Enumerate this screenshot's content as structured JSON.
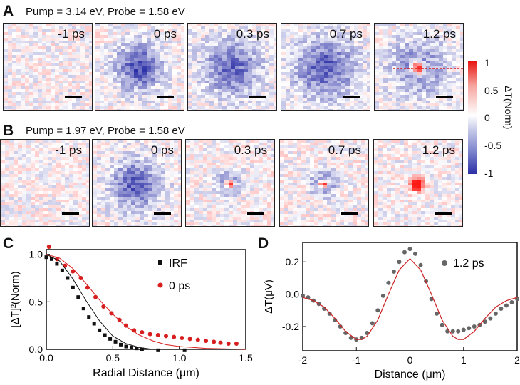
{
  "panelA": {
    "letter": "A",
    "condition": "Pump = 3.14 eV, Probe = 1.58 eV",
    "frames": [
      "-1 ps",
      "0 ps",
      "0.3 ps",
      "0.7 ps",
      "1.2 ps"
    ]
  },
  "panelB": {
    "letter": "B",
    "condition": "Pump = 1.97 eV, Probe = 1.58 eV",
    "frames": [
      "-1 ps",
      "0 ps",
      "0.3 ps",
      "0.7 ps",
      "1.2 ps"
    ]
  },
  "colorbar": {
    "label": "ΔT(Norm)",
    "ticks": [
      "1",
      "0.5",
      "0",
      "-0.5",
      "-1"
    ],
    "colors": {
      "max": "#e8140f",
      "mid": "#ffffff",
      "min": "#2b2fa6"
    }
  },
  "panelC": {
    "letter": "C"
  },
  "panelD": {
    "letter": "D"
  },
  "chart_data": [
    {
      "type": "scatter",
      "xlabel": "Radial Distance (μm)",
      "ylabel": "[ΔT]²(Norm)",
      "xlim": [
        0,
        1.5
      ],
      "ylim": [
        0,
        1.05
      ],
      "xticks": [
        "0.0",
        "0.5",
        "1.0",
        "1.5"
      ],
      "yticks": [
        "0.0",
        "0.5",
        "1.0"
      ],
      "legend_position": "top-right",
      "series": [
        {
          "name": "IRF",
          "marker": "square",
          "color": "#111111",
          "x": [
            0.0,
            0.04,
            0.08,
            0.12,
            0.16,
            0.2,
            0.24,
            0.28,
            0.32,
            0.36,
            0.4,
            0.44,
            0.48,
            0.52,
            0.56,
            0.6,
            0.64,
            0.68,
            0.72,
            0.84,
            1.04
          ],
          "y": [
            0.97,
            0.95,
            0.9,
            0.83,
            0.75,
            0.65,
            0.55,
            0.43,
            0.34,
            0.27,
            0.2,
            0.15,
            0.11,
            0.08,
            0.05,
            0.03,
            0.02,
            0.01,
            0.0,
            -0.01,
            -0.01
          ]
        },
        {
          "name": "0 ps",
          "marker": "circle",
          "color": "#d81e1e",
          "x": [
            0.02,
            0.08,
            0.14,
            0.2,
            0.26,
            0.31,
            0.37,
            0.43,
            0.49,
            0.55,
            0.6,
            0.66,
            0.72,
            0.78,
            0.84,
            0.9,
            0.96,
            1.02,
            1.08,
            1.14,
            1.2,
            1.26,
            1.31,
            1.37,
            1.43
          ],
          "y": [
            1.08,
            0.95,
            0.88,
            0.82,
            0.75,
            0.65,
            0.55,
            0.45,
            0.38,
            0.31,
            0.25,
            0.2,
            0.18,
            0.16,
            0.15,
            0.14,
            0.13,
            0.12,
            0.11,
            0.1,
            0.09,
            0.08,
            0.07,
            0.06,
            0.06
          ]
        },
        {
          "name": "IRF fit",
          "line": true,
          "color": "#111111",
          "x": [
            0.0,
            0.1,
            0.2,
            0.3,
            0.4,
            0.5,
            0.6,
            0.7,
            0.8,
            0.9,
            1.0,
            1.5
          ],
          "y": [
            1.0,
            0.93,
            0.74,
            0.51,
            0.3,
            0.14,
            0.06,
            0.02,
            0.0,
            0.0,
            0.0,
            0.0
          ]
        },
        {
          "name": "0 ps fit",
          "line": true,
          "color": "#d81e1e",
          "x": [
            0.0,
            0.1,
            0.2,
            0.3,
            0.4,
            0.5,
            0.6,
            0.7,
            0.8,
            0.9,
            1.0,
            1.2,
            1.5
          ],
          "y": [
            1.0,
            0.96,
            0.85,
            0.69,
            0.52,
            0.37,
            0.24,
            0.15,
            0.09,
            0.05,
            0.03,
            0.01,
            0.0
          ]
        }
      ]
    },
    {
      "type": "scatter",
      "xlabel": "Distance (μm)",
      "ylabel": "ΔT(μV)",
      "xlim": [
        -2,
        2
      ],
      "ylim": [
        -0.35,
        0.32
      ],
      "xticks": [
        "-2",
        "-1",
        "0",
        "1",
        "2"
      ],
      "yticks": [
        "-0.2",
        "0.0",
        "0.2"
      ],
      "legend_position": "top-right",
      "series": [
        {
          "name": "1.2 ps",
          "marker": "circle",
          "color": "#666666",
          "x": [
            -2.0,
            -1.9,
            -1.8,
            -1.7,
            -1.6,
            -1.5,
            -1.4,
            -1.3,
            -1.2,
            -1.1,
            -1.0,
            -0.9,
            -0.8,
            -0.7,
            -0.6,
            -0.5,
            -0.4,
            -0.3,
            -0.2,
            -0.1,
            0.0,
            0.1,
            0.2,
            0.3,
            0.4,
            0.5,
            0.6,
            0.7,
            0.8,
            0.9,
            1.0,
            1.1,
            1.2,
            1.3,
            1.4,
            1.5,
            1.6,
            1.7,
            1.8,
            1.9,
            2.0
          ],
          "y": [
            -0.01,
            -0.02,
            -0.04,
            -0.06,
            -0.09,
            -0.12,
            -0.16,
            -0.2,
            -0.24,
            -0.27,
            -0.28,
            -0.27,
            -0.24,
            -0.18,
            -0.1,
            -0.01,
            0.07,
            0.14,
            0.2,
            0.26,
            0.28,
            0.25,
            0.18,
            0.08,
            -0.03,
            -0.12,
            -0.19,
            -0.23,
            -0.23,
            -0.23,
            -0.22,
            -0.21,
            -0.2,
            -0.19,
            -0.17,
            -0.15,
            -0.12,
            -0.09,
            -0.07,
            -0.05,
            -0.03
          ]
        },
        {
          "name": "1.2 ps fit",
          "line": true,
          "color": "#cc2222",
          "x": [
            -2.0,
            -1.8,
            -1.6,
            -1.4,
            -1.2,
            -1.0,
            -0.9,
            -0.8,
            -0.6,
            -0.4,
            -0.2,
            0.0,
            0.2,
            0.4,
            0.6,
            0.8,
            0.9,
            1.0,
            1.2,
            1.4,
            1.6,
            1.8,
            2.0
          ],
          "y": [
            -0.02,
            -0.04,
            -0.08,
            -0.15,
            -0.23,
            -0.28,
            -0.28,
            -0.26,
            -0.16,
            0.0,
            0.15,
            0.22,
            0.15,
            0.0,
            -0.16,
            -0.26,
            -0.28,
            -0.28,
            -0.23,
            -0.15,
            -0.08,
            -0.04,
            -0.02
          ]
        }
      ]
    }
  ]
}
